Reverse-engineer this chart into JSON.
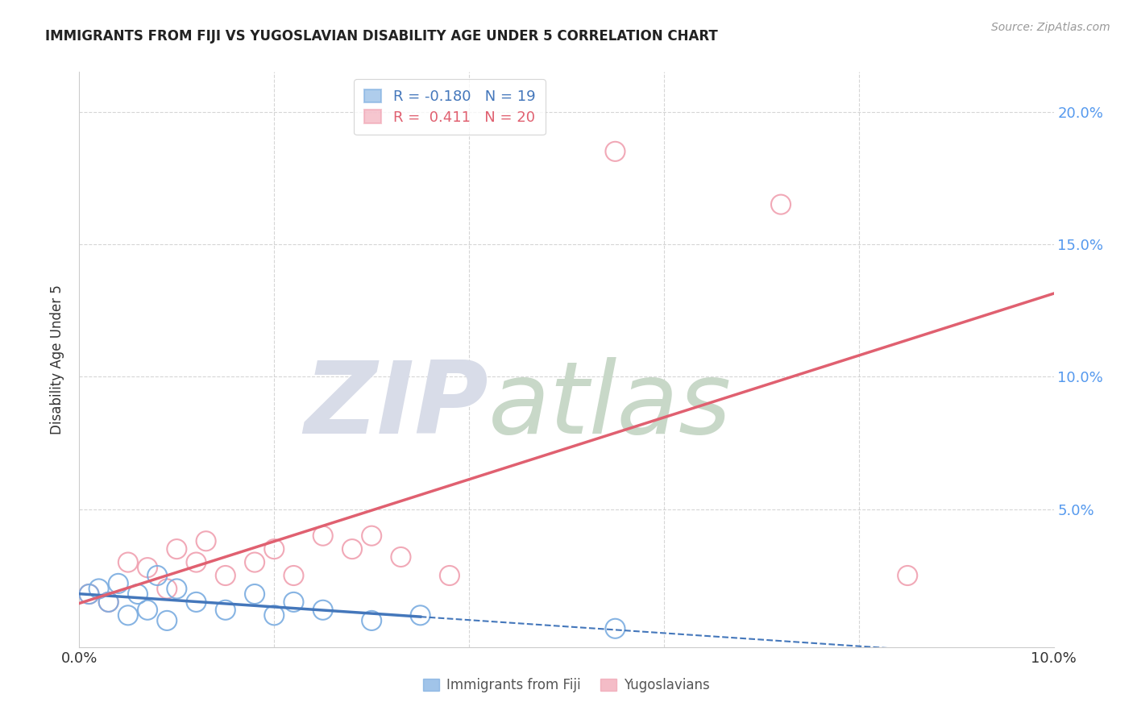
{
  "title": "IMMIGRANTS FROM FIJI VS YUGOSLAVIAN DISABILITY AGE UNDER 5 CORRELATION CHART",
  "source": "Source: ZipAtlas.com",
  "ylabel": "Disability Age Under 5",
  "xlim": [
    0.0,
    0.1
  ],
  "ylim": [
    -0.002,
    0.215
  ],
  "xtick_positions": [
    0.0,
    0.1
  ],
  "xtick_labels": [
    "0.0%",
    "10.0%"
  ],
  "ytick_labels_right": [
    "5.0%",
    "10.0%",
    "15.0%",
    "20.0%"
  ],
  "yticks_right": [
    0.05,
    0.1,
    0.15,
    0.2
  ],
  "fiji_color": "#7aace0",
  "fiji_line_color": "#4477bb",
  "yugo_color": "#f0a0b0",
  "yugo_line_color": "#e06070",
  "fiji_R": -0.18,
  "fiji_N": 19,
  "yugo_R": 0.411,
  "yugo_N": 20,
  "fiji_x": [
    0.001,
    0.002,
    0.003,
    0.004,
    0.005,
    0.006,
    0.007,
    0.008,
    0.009,
    0.01,
    0.012,
    0.015,
    0.018,
    0.02,
    0.022,
    0.025,
    0.03,
    0.035,
    0.055
  ],
  "fiji_y": [
    0.018,
    0.02,
    0.015,
    0.022,
    0.01,
    0.018,
    0.012,
    0.025,
    0.008,
    0.02,
    0.015,
    0.012,
    0.018,
    0.01,
    0.015,
    0.012,
    0.008,
    0.01,
    0.005
  ],
  "yugo_x": [
    0.001,
    0.003,
    0.005,
    0.007,
    0.009,
    0.01,
    0.012,
    0.013,
    0.015,
    0.018,
    0.02,
    0.022,
    0.025,
    0.028,
    0.03,
    0.033,
    0.038,
    0.055,
    0.072,
    0.085
  ],
  "yugo_y": [
    0.018,
    0.015,
    0.03,
    0.028,
    0.02,
    0.035,
    0.03,
    0.038,
    0.025,
    0.03,
    0.035,
    0.025,
    0.04,
    0.035,
    0.04,
    0.032,
    0.025,
    0.185,
    0.165,
    0.025
  ],
  "background_color": "#ffffff",
  "grid_color": "#cccccc",
  "watermark_zip": "ZIP",
  "watermark_atlas": "atlas",
  "watermark_color_zip": "#d8dce8",
  "watermark_color_atlas": "#c8d8c8",
  "legend_fiji_label": "Immigrants from Fiji",
  "legend_yugo_label": "Yugoslavians"
}
